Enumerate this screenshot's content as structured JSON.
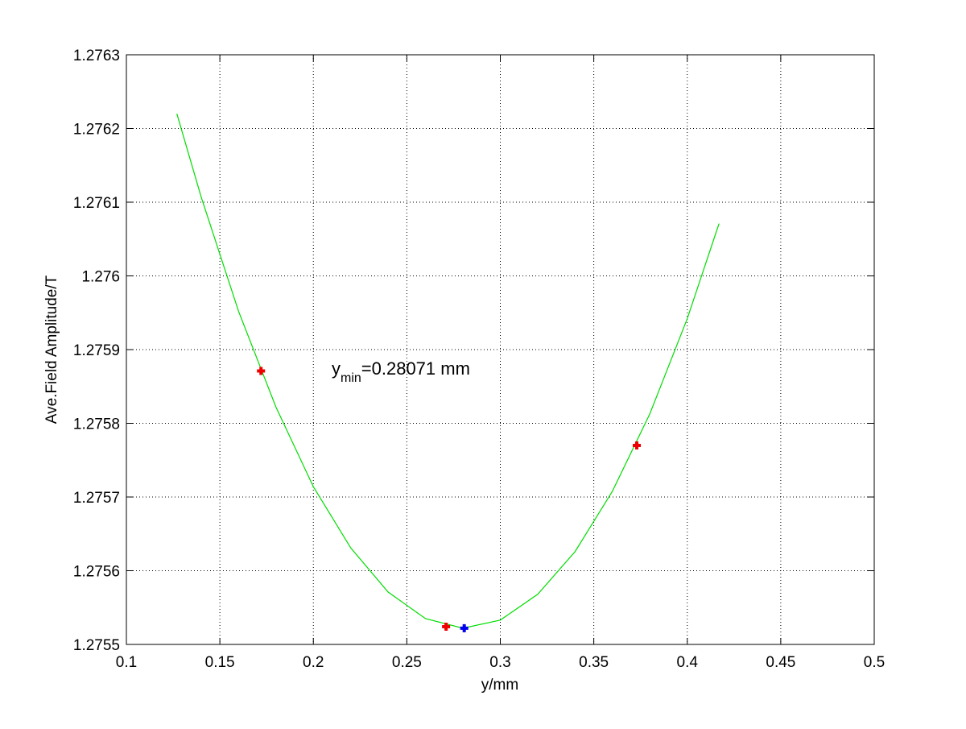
{
  "chart_data": {
    "type": "line",
    "xlabel": "y/mm",
    "ylabel": "Ave.Field Amplitude/T",
    "annotation": {
      "text": "y",
      "subscript": "min",
      "suffix": "=0.28071 mm"
    },
    "xlim": [
      0.1,
      0.5
    ],
    "xticks": [
      0.1,
      0.15,
      0.2,
      0.25,
      0.3,
      0.35,
      0.4,
      0.45,
      0.5
    ],
    "ylim": [
      1.2755,
      1.2763
    ],
    "yticks": [
      1.2755,
      1.2756,
      1.2757,
      1.2758,
      1.2759,
      1.276,
      1.2761,
      1.2762,
      1.2763
    ],
    "grid": true,
    "series": [
      {
        "style": "line",
        "color": "#00dd00",
        "x": [
          0.127,
          0.14,
          0.16,
          0.18,
          0.2,
          0.22,
          0.24,
          0.26,
          0.28,
          0.3,
          0.32,
          0.34,
          0.36,
          0.38,
          0.4,
          0.417
        ],
        "values": [
          1.27622,
          1.276107,
          1.275952,
          1.275822,
          1.275714,
          1.275631,
          1.275571,
          1.275535,
          1.275522,
          1.275533,
          1.275568,
          1.275626,
          1.275708,
          1.275813,
          1.275942,
          1.276071
        ]
      },
      {
        "style": "marker",
        "color": "#ee0000",
        "x": [
          0.172,
          0.271,
          0.373
        ],
        "values": [
          1.275871,
          1.275524,
          1.27577
        ]
      },
      {
        "style": "marker",
        "color": "#0000ee",
        "x": [
          0.28071
        ],
        "values": [
          1.275522
        ]
      }
    ]
  }
}
